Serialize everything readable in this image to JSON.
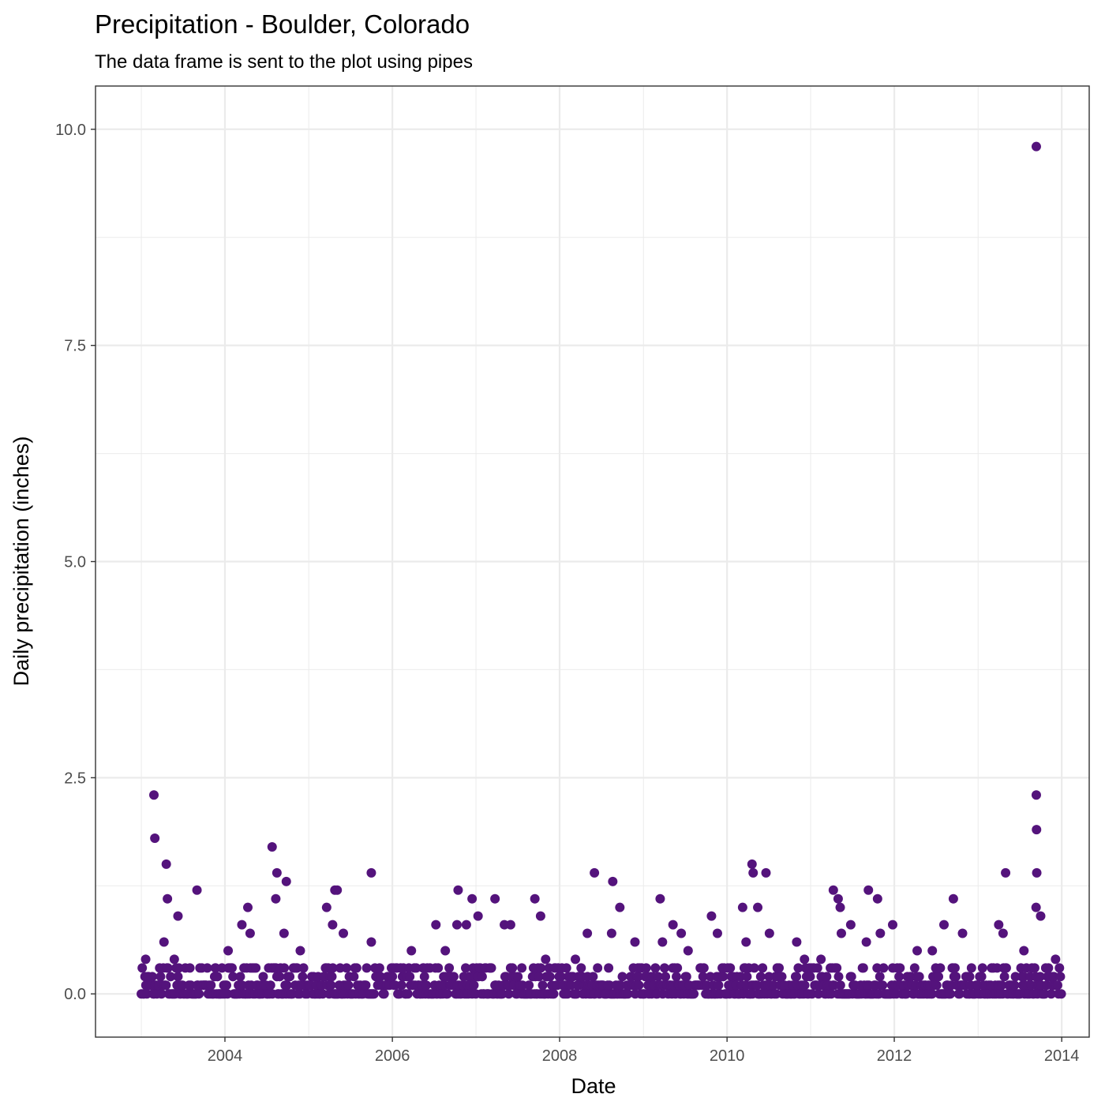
{
  "chart_data": {
    "type": "scatter",
    "title": "Precipitation - Boulder, Colorado",
    "subtitle": "The data frame is sent to the plot using pipes",
    "xlabel": "Date",
    "ylabel": "Daily precipitation (inches)",
    "x_ticks": [
      "2004",
      "2006",
      "2008",
      "2010",
      "2012",
      "2014"
    ],
    "y_ticks": [
      "0.0",
      "2.5",
      "5.0",
      "7.5",
      "10.0"
    ],
    "xlim": [
      "2002-06-15",
      "2014-05-01"
    ],
    "ylim": [
      -0.5,
      10.5
    ],
    "grid": true,
    "point_color": "#54137c",
    "points": [
      {
        "x": "2003-02-25",
        "y": 2.3
      },
      {
        "x": "2003-03-01",
        "y": 1.8
      },
      {
        "x": "2003-04-10",
        "y": 0.6
      },
      {
        "x": "2003-04-20",
        "y": 1.5
      },
      {
        "x": "2003-04-25",
        "y": 1.1
      },
      {
        "x": "2003-06-10",
        "y": 0.9
      },
      {
        "x": "2003-01-20",
        "y": 0.4
      },
      {
        "x": "2003-05-25",
        "y": 0.4
      },
      {
        "x": "2003-09-01",
        "y": 1.2
      },
      {
        "x": "2004-03-15",
        "y": 0.8
      },
      {
        "x": "2004-04-10",
        "y": 1.0
      },
      {
        "x": "2004-01-15",
        "y": 0.5
      },
      {
        "x": "2004-04-20",
        "y": 0.7
      },
      {
        "x": "2004-07-25",
        "y": 1.7
      },
      {
        "x": "2004-08-15",
        "y": 1.4
      },
      {
        "x": "2004-08-10",
        "y": 1.1
      },
      {
        "x": "2004-09-25",
        "y": 1.3
      },
      {
        "x": "2004-09-15",
        "y": 0.7
      },
      {
        "x": "2005-03-20",
        "y": 1.0
      },
      {
        "x": "2005-04-25",
        "y": 1.2
      },
      {
        "x": "2005-05-05",
        "y": 1.2
      },
      {
        "x": "2005-04-15",
        "y": 0.8
      },
      {
        "x": "2005-06-01",
        "y": 0.7
      },
      {
        "x": "2005-10-01",
        "y": 1.4
      },
      {
        "x": "2005-10-01",
        "y": 0.6
      },
      {
        "x": "2006-03-25",
        "y": 0.5
      },
      {
        "x": "2006-07-10",
        "y": 0.8
      },
      {
        "x": "2006-10-15",
        "y": 1.2
      },
      {
        "x": "2006-10-10",
        "y": 0.8
      },
      {
        "x": "2006-11-20",
        "y": 0.8
      },
      {
        "x": "2006-12-15",
        "y": 1.1
      },
      {
        "x": "2007-01-10",
        "y": 0.9
      },
      {
        "x": "2007-03-25",
        "y": 1.1
      },
      {
        "x": "2007-05-05",
        "y": 0.8
      },
      {
        "x": "2007-06-01",
        "y": 0.8
      },
      {
        "x": "2007-09-15",
        "y": 1.1
      },
      {
        "x": "2007-10-10",
        "y": 0.9
      },
      {
        "x": "2008-05-01",
        "y": 0.7
      },
      {
        "x": "2008-06-01",
        "y": 1.4
      },
      {
        "x": "2008-08-20",
        "y": 1.3
      },
      {
        "x": "2008-09-20",
        "y": 1.0
      },
      {
        "x": "2008-08-15",
        "y": 0.7
      },
      {
        "x": "2008-11-25",
        "y": 0.6
      },
      {
        "x": "2009-03-15",
        "y": 1.1
      },
      {
        "x": "2009-03-25",
        "y": 0.6
      },
      {
        "x": "2009-05-10",
        "y": 0.8
      },
      {
        "x": "2009-06-15",
        "y": 0.7
      },
      {
        "x": "2009-07-15",
        "y": 0.5
      },
      {
        "x": "2009-10-25",
        "y": 0.9
      },
      {
        "x": "2009-11-20",
        "y": 0.7
      },
      {
        "x": "2010-03-10",
        "y": 1.0
      },
      {
        "x": "2010-04-20",
        "y": 1.5
      },
      {
        "x": "2010-04-25",
        "y": 1.4
      },
      {
        "x": "2010-05-15",
        "y": 1.0
      },
      {
        "x": "2010-06-20",
        "y": 1.4
      },
      {
        "x": "2010-07-05",
        "y": 0.7
      },
      {
        "x": "2010-03-25",
        "y": 0.6
      },
      {
        "x": "2010-11-01",
        "y": 0.6
      },
      {
        "x": "2011-04-10",
        "y": 1.2
      },
      {
        "x": "2011-05-01",
        "y": 1.1
      },
      {
        "x": "2011-05-10",
        "y": 1.0
      },
      {
        "x": "2011-05-15",
        "y": 0.7
      },
      {
        "x": "2011-06-25",
        "y": 0.8
      },
      {
        "x": "2011-09-10",
        "y": 1.2
      },
      {
        "x": "2011-10-20",
        "y": 1.1
      },
      {
        "x": "2011-11-01",
        "y": 0.7
      },
      {
        "x": "2011-09-01",
        "y": 0.6
      },
      {
        "x": "2011-12-25",
        "y": 0.8
      },
      {
        "x": "2012-08-05",
        "y": 0.8
      },
      {
        "x": "2012-09-15",
        "y": 1.1
      },
      {
        "x": "2012-10-25",
        "y": 0.7
      },
      {
        "x": "2013-04-01",
        "y": 0.8
      },
      {
        "x": "2013-05-01",
        "y": 1.4
      },
      {
        "x": "2013-09-12",
        "y": 9.8
      },
      {
        "x": "2013-09-12",
        "y": 2.3
      },
      {
        "x": "2013-09-13",
        "y": 1.9
      },
      {
        "x": "2013-09-14",
        "y": 1.4
      },
      {
        "x": "2013-09-11",
        "y": 1.0
      },
      {
        "x": "2013-10-01",
        "y": 0.9
      },
      {
        "x": "2013-04-20",
        "y": 0.7
      },
      {
        "x": "2013-07-20",
        "y": 0.5
      },
      {
        "x": "2013-12-05",
        "y": 0.4
      },
      {
        "x": "2012-06-15",
        "y": 0.5
      },
      {
        "x": "2012-04-10",
        "y": 0.5
      },
      {
        "x": "2005-12-10",
        "y": 0.2
      },
      {
        "x": "2006-05-15",
        "y": 0.3
      },
      {
        "x": "2007-07-20",
        "y": 0.3
      },
      {
        "x": "2008-03-10",
        "y": 0.4
      },
      {
        "x": "2009-01-20",
        "y": 0.2
      },
      {
        "x": "2010-01-15",
        "y": 0.3
      },
      {
        "x": "2011-02-15",
        "y": 0.4
      },
      {
        "x": "2012-01-20",
        "y": 0.1
      },
      {
        "x": "2012-11-25",
        "y": 0.2
      },
      {
        "x": "2003-11-20",
        "y": 0.3
      },
      {
        "x": "2004-11-25",
        "y": 0.5
      },
      {
        "x": "2006-08-20",
        "y": 0.5
      },
      {
        "x": "2007-11-01",
        "y": 0.4
      },
      {
        "x": "2008-12-10",
        "y": 0.2
      },
      {
        "x": "2010-12-05",
        "y": 0.4
      }
    ]
  }
}
